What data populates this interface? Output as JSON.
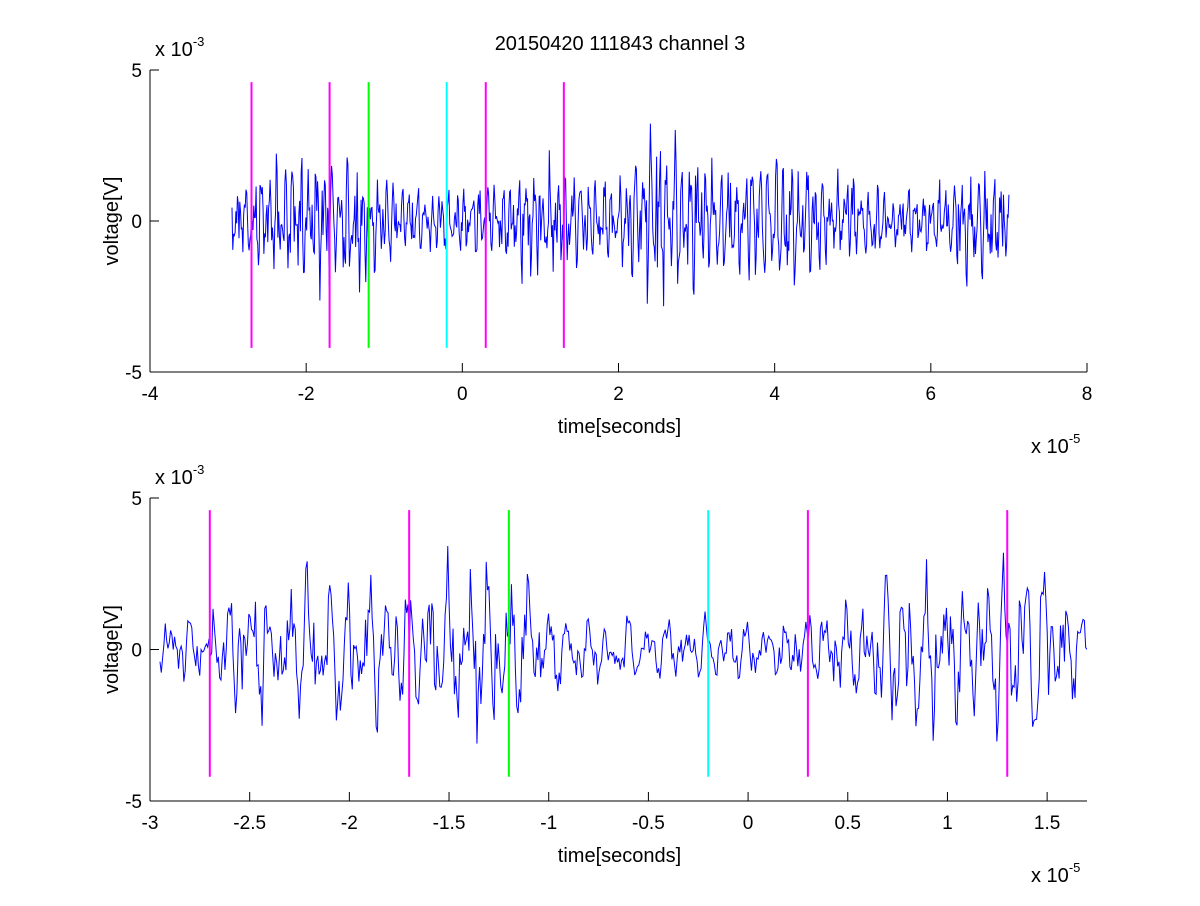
{
  "figure": {
    "title": "20150420 111843 channel 3"
  },
  "colors": {
    "signal": "#0000ff",
    "magenta": "#ff00ff",
    "green": "#00ff00",
    "cyan": "#00ffff",
    "axis": "#000000"
  },
  "chart_data": [
    {
      "type": "line",
      "title": "20150420 111843 channel 3",
      "xlabel": "time[seconds]",
      "ylabel": "voltage[V]",
      "xlim": [
        -4,
        8
      ],
      "ylim": [
        -5,
        5
      ],
      "x_scale_label": "x 10",
      "x_scale_exponent": "-5",
      "y_scale_label": "x 10",
      "y_scale_exponent": "-3",
      "x_ticks": [
        -4,
        -2,
        0,
        2,
        4,
        6,
        8
      ],
      "x_tick_labels": [
        "-4",
        "-2",
        "0",
        "2",
        "4",
        "6",
        "8"
      ],
      "y_ticks": [
        -5,
        0,
        5
      ],
      "y_tick_labels": [
        "-5",
        "0",
        "5"
      ],
      "grid": false,
      "signal": {
        "x_start": -2.95,
        "x_end": 7.0,
        "samples": 1000,
        "amplitude_envelope": [
          [
            -2.95,
            0.9
          ],
          [
            -2.5,
            1.5
          ],
          [
            -2.0,
            1.9
          ],
          [
            -1.5,
            2.0
          ],
          [
            -1.0,
            1.2
          ],
          [
            -0.5,
            0.9
          ],
          [
            0.0,
            0.9
          ],
          [
            0.5,
            1.0
          ],
          [
            1.0,
            1.7
          ],
          [
            1.5,
            1.3
          ],
          [
            2.0,
            1.1
          ],
          [
            2.5,
            2.6
          ],
          [
            3.0,
            1.9
          ],
          [
            3.5,
            1.6
          ],
          [
            4.0,
            2.0
          ],
          [
            4.5,
            1.5
          ],
          [
            5.0,
            1.3
          ],
          [
            5.5,
            0.9
          ],
          [
            6.0,
            0.9
          ],
          [
            6.5,
            1.6
          ],
          [
            7.0,
            1.2
          ]
        ]
      },
      "markers": [
        {
          "x": -2.7,
          "color": "magenta",
          "y_top": 4.6,
          "y_bottom": -4.2
        },
        {
          "x": -1.7,
          "color": "magenta",
          "y_top": 4.6,
          "y_bottom": -4.2
        },
        {
          "x": -1.2,
          "color": "green",
          "y_top": 4.6,
          "y_bottom": -4.2
        },
        {
          "x": -0.2,
          "color": "cyan",
          "y_top": 4.6,
          "y_bottom": -4.2
        },
        {
          "x": 0.3,
          "color": "magenta",
          "y_top": 4.6,
          "y_bottom": -4.2
        },
        {
          "x": 1.3,
          "color": "magenta",
          "y_top": 4.6,
          "y_bottom": -4.2
        }
      ]
    },
    {
      "type": "line",
      "title": "",
      "xlabel": "time[seconds]",
      "ylabel": "voltage[V]",
      "xlim": [
        -3.0,
        1.7
      ],
      "ylim": [
        -5,
        5
      ],
      "x_scale_label": "x 10",
      "x_scale_exponent": "-5",
      "y_scale_label": "x 10",
      "y_scale_exponent": "-3",
      "x_ticks": [
        -3,
        -2.5,
        -2,
        -1.5,
        -1,
        -0.5,
        0,
        0.5,
        1,
        1.5
      ],
      "x_tick_labels": [
        "-3",
        "-2.5",
        "-2",
        "-1.5",
        "-1",
        "-0.5",
        "0",
        "0.5",
        "1",
        "1.5"
      ],
      "y_ticks": [
        -5,
        0,
        5
      ],
      "y_tick_labels": [
        "-5",
        "0",
        "5"
      ],
      "grid": false,
      "signal": {
        "x_start": -2.95,
        "x_end": 1.7,
        "samples": 700,
        "amplitude_envelope": [
          [
            -2.95,
            0.8
          ],
          [
            -2.7,
            1.3
          ],
          [
            -2.4,
            2.2
          ],
          [
            -2.1,
            1.9
          ],
          [
            -1.8,
            2.0
          ],
          [
            -1.5,
            2.2
          ],
          [
            -1.3,
            3.0
          ],
          [
            -1.1,
            2.0
          ],
          [
            -0.9,
            1.0
          ],
          [
            -0.6,
            0.9
          ],
          [
            -0.3,
            0.8
          ],
          [
            0.0,
            0.9
          ],
          [
            0.3,
            1.0
          ],
          [
            0.6,
            1.4
          ],
          [
            0.8,
            2.4
          ],
          [
            1.0,
            1.9
          ],
          [
            1.2,
            2.0
          ],
          [
            1.4,
            2.8
          ],
          [
            1.7,
            1.0
          ]
        ]
      },
      "markers": [
        {
          "x": -2.7,
          "color": "magenta",
          "y_top": 4.6,
          "y_bottom": -4.2
        },
        {
          "x": -1.7,
          "color": "magenta",
          "y_top": 4.6,
          "y_bottom": -4.2
        },
        {
          "x": -1.2,
          "color": "green",
          "y_top": 4.6,
          "y_bottom": -4.2
        },
        {
          "x": -0.2,
          "color": "cyan",
          "y_top": 4.6,
          "y_bottom": -4.2
        },
        {
          "x": 0.3,
          "color": "magenta",
          "y_top": 4.6,
          "y_bottom": -4.2
        },
        {
          "x": 1.3,
          "color": "magenta",
          "y_top": 4.6,
          "y_bottom": -4.2
        }
      ]
    }
  ]
}
